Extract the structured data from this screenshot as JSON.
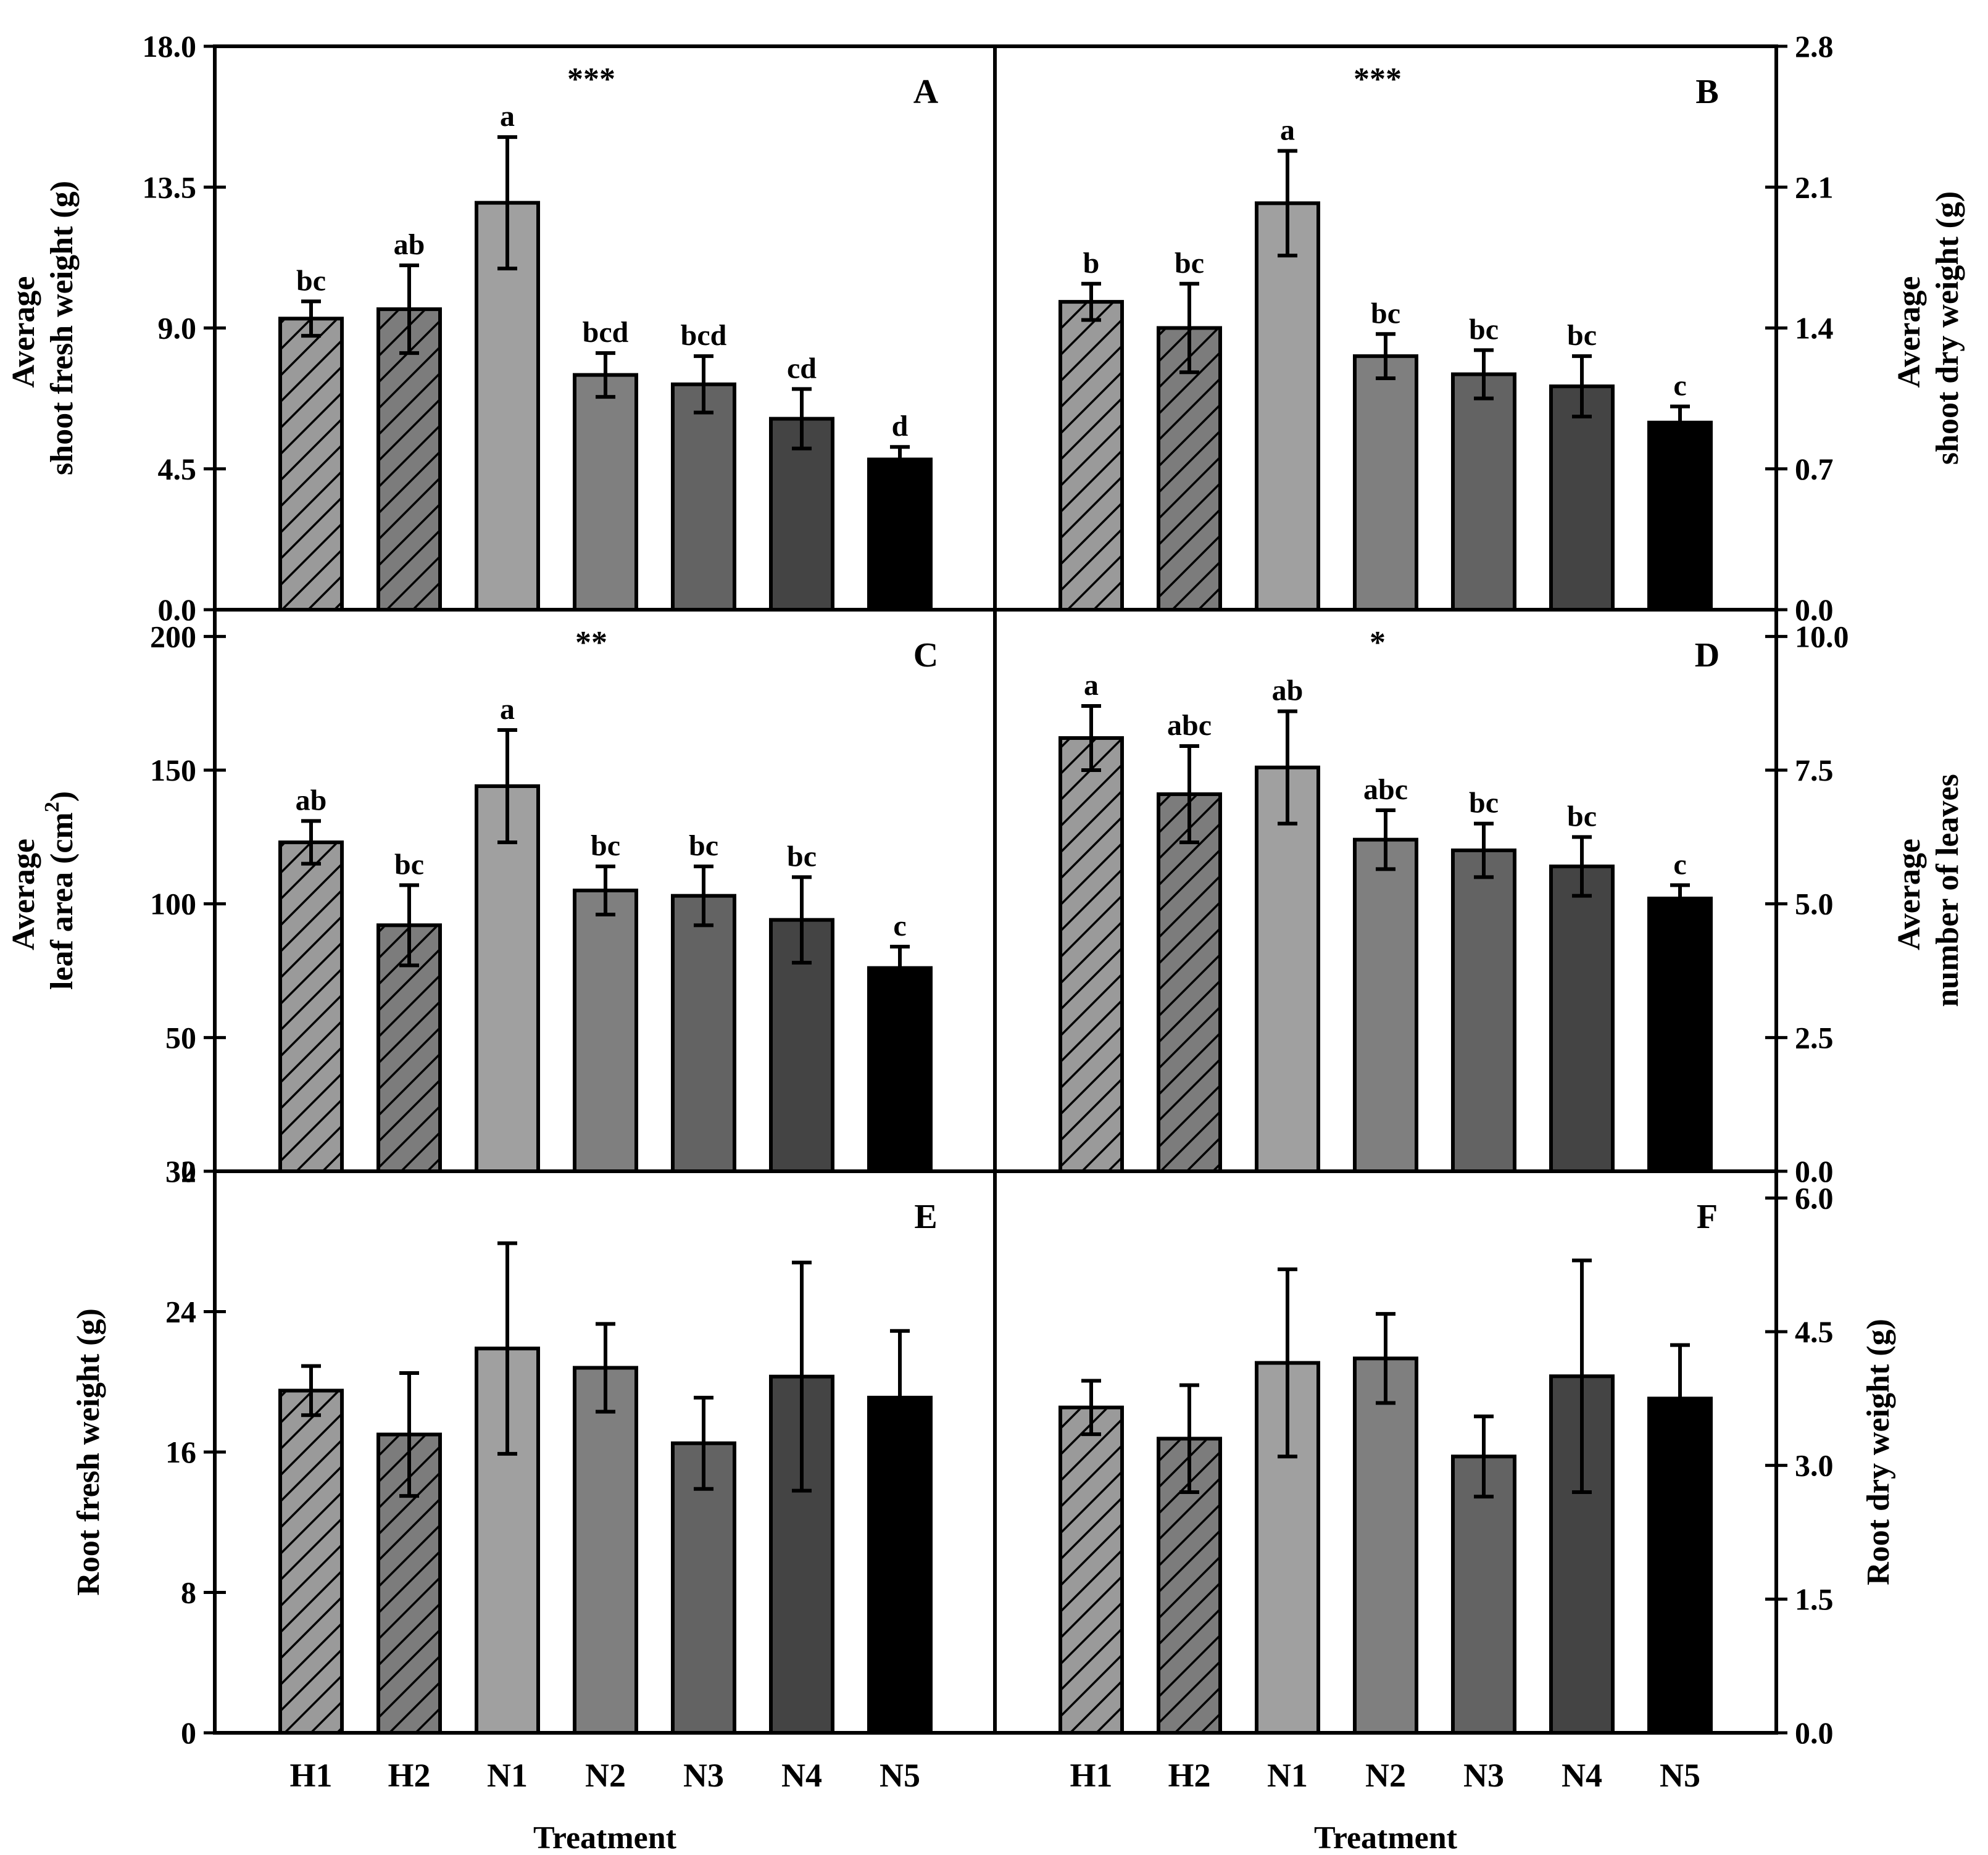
{
  "figure": {
    "categories": [
      "H1",
      "H2",
      "N1",
      "N2",
      "N3",
      "N4",
      "N5"
    ],
    "x_axis_title": "Treatment",
    "colors": {
      "H1": "#9a9a9a",
      "H2": "#7c7c7c",
      "N1": "#a0a0a0",
      "N2": "#7f7f7f",
      "N3": "#636363",
      "N4": "#444444",
      "N5": "#000000",
      "hatch": "#000000",
      "axis": "#000000"
    },
    "hatched_categories": [
      "H1",
      "H2"
    ]
  },
  "chart_data": [
    {
      "panel": "A",
      "type": "bar",
      "title": "",
      "ylabel_lines": [
        "Average",
        "shoot fresh weight (g)"
      ],
      "y_axis_side": "left",
      "ylim": [
        0,
        18
      ],
      "yticks": [
        "0.0",
        "4.5",
        "9.0",
        "13.5",
        "18.0"
      ],
      "significance": "***",
      "categories": [
        "H1",
        "H2",
        "N1",
        "N2",
        "N3",
        "N4",
        "N5"
      ],
      "values": [
        9.3,
        9.6,
        13.0,
        7.5,
        7.2,
        6.1,
        4.8
      ],
      "errors": [
        0.55,
        1.4,
        2.1,
        0.7,
        0.9,
        0.95,
        0.4
      ],
      "letters": [
        "bc",
        "ab",
        "a",
        "bcd",
        "bcd",
        "cd",
        "d"
      ]
    },
    {
      "panel": "B",
      "type": "bar",
      "title": "",
      "ylabel_lines": [
        "Average",
        "shoot dry weight (g)"
      ],
      "y_axis_side": "right",
      "ylim": [
        0,
        2.8
      ],
      "yticks": [
        "0.0",
        "0.7",
        "1.4",
        "2.1",
        "2.8"
      ],
      "significance": "***",
      "categories": [
        "H1",
        "H2",
        "N1",
        "N2",
        "N3",
        "N4",
        "N5"
      ],
      "values": [
        1.53,
        1.4,
        2.02,
        1.26,
        1.17,
        1.11,
        0.93
      ],
      "errors": [
        0.09,
        0.22,
        0.26,
        0.11,
        0.12,
        0.15,
        0.08
      ],
      "letters": [
        "b",
        "bc",
        "a",
        "bc",
        "bc",
        "bc",
        "c"
      ]
    },
    {
      "panel": "C",
      "type": "bar",
      "title": "",
      "ylabel_lines": [
        "Average",
        "leaf area (cm"
      ],
      "ylabel_superscript": "2",
      "ylabel_suffix": ")",
      "y_axis_side": "left",
      "ylim": [
        0,
        210
      ],
      "yticks": [
        "0",
        "50",
        "100",
        "150",
        "200"
      ],
      "significance": "**",
      "categories": [
        "H1",
        "H2",
        "N1",
        "N2",
        "N3",
        "N4",
        "N5"
      ],
      "values": [
        123,
        92,
        144,
        105,
        103,
        94,
        76
      ],
      "errors": [
        8,
        15,
        21,
        9,
        11,
        16,
        8
      ],
      "letters": [
        "ab",
        "bc",
        "a",
        "bc",
        "bc",
        "bc",
        "c"
      ]
    },
    {
      "panel": "D",
      "type": "bar",
      "title": "",
      "ylabel_lines": [
        "Average",
        "number of leaves"
      ],
      "y_axis_side": "right",
      "ylim": [
        0,
        10.5
      ],
      "yticks": [
        "0.0",
        "2.5",
        "5.0",
        "7.5",
        "10.0"
      ],
      "significance": "*",
      "categories": [
        "H1",
        "H2",
        "N1",
        "N2",
        "N3",
        "N4",
        "N5"
      ],
      "values": [
        8.1,
        7.05,
        7.55,
        6.2,
        6.0,
        5.7,
        5.1
      ],
      "errors": [
        0.6,
        0.9,
        1.05,
        0.55,
        0.5,
        0.55,
        0.25
      ],
      "letters": [
        "a",
        "abc",
        "ab",
        "abc",
        "bc",
        "bc",
        "c"
      ]
    },
    {
      "panel": "E",
      "type": "bar",
      "title": "",
      "ylabel_lines": [
        "Root fresh weight (g)"
      ],
      "y_axis_side": "left",
      "ylim": [
        0,
        32
      ],
      "yticks": [
        "0",
        "8",
        "16",
        "24",
        "32"
      ],
      "significance": "",
      "categories": [
        "H1",
        "H2",
        "N1",
        "N2",
        "N3",
        "N4",
        "N5"
      ],
      "values": [
        19.5,
        17.0,
        21.9,
        20.8,
        16.5,
        20.3,
        19.1
      ],
      "errors": [
        1.4,
        3.5,
        6.0,
        2.5,
        2.6,
        6.5,
        3.8
      ],
      "letters": []
    },
    {
      "panel": "F",
      "type": "bar",
      "title": "",
      "ylabel_lines": [
        "Root dry weight (g)"
      ],
      "y_axis_side": "right",
      "ylim": [
        0,
        6.3
      ],
      "yticks": [
        "0.0",
        "1.5",
        "3.0",
        "4.5",
        "6.0"
      ],
      "significance": "",
      "categories": [
        "H1",
        "H2",
        "N1",
        "N2",
        "N3",
        "N4",
        "N5"
      ],
      "values": [
        3.65,
        3.3,
        4.15,
        4.2,
        3.1,
        4.0,
        3.75
      ],
      "errors": [
        0.3,
        0.6,
        1.05,
        0.5,
        0.45,
        1.3,
        0.6
      ],
      "letters": []
    }
  ]
}
